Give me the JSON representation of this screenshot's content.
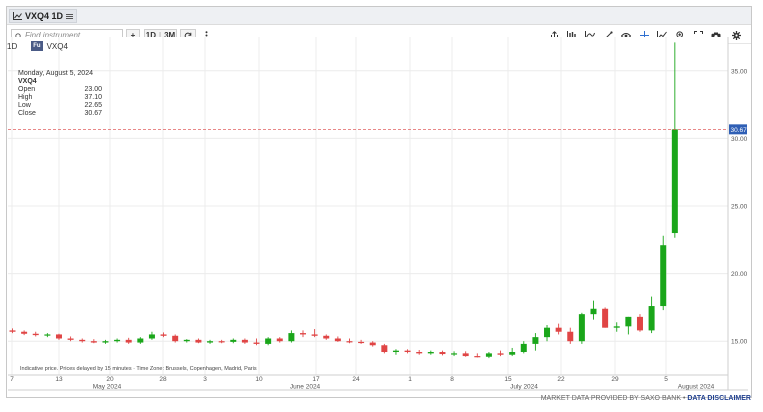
{
  "header": {
    "tab_label": "VXQ4 1D"
  },
  "toolbar": {
    "search_placeholder": "Find instrument",
    "add_label": "+",
    "interval_label": "1D",
    "range_label": "3M"
  },
  "instrument": {
    "interval": "1D",
    "badge": "Fu",
    "symbol": "VXQ4"
  },
  "ohlc": {
    "date": "Monday, August 5, 2024",
    "symbol": "VXQ4",
    "open_label": "Open",
    "open": "23.00",
    "high_label": "High",
    "high": "37.10",
    "low_label": "Low",
    "low": "22.65",
    "close_label": "Close",
    "close": "30.67"
  },
  "note": "Indicative price. Prices delayed by 15 minutes · Time Zone: Brussels, Copenhagen, Madrid, Paris",
  "footer": {
    "provider": "MARKET DATA PROVIDED BY SAXO BANK • ",
    "disclaimer": "DATA DISCLAIMER"
  },
  "colors": {
    "up": "#1aa61a",
    "down": "#e04545",
    "last_price_line": "#e06060",
    "last_price_tag": "#2f5fb5"
  },
  "chart_data": {
    "type": "candlestick",
    "y_ticks": [
      "15.00",
      "20.00",
      "25.00",
      "30.00",
      "35.00"
    ],
    "ylim": [
      12.5,
      37.5
    ],
    "last_price": "30.67",
    "x_day_ticks": [
      "7",
      "13",
      "20",
      "28",
      "3",
      "10",
      "17",
      "24",
      "1",
      "8",
      "15",
      "22",
      "29",
      "5"
    ],
    "x_month_labels": [
      "May 2024",
      "June 2024",
      "July 2024",
      "August 2024"
    ],
    "candles": [
      [
        15.8,
        15.95,
        15.6,
        15.7
      ],
      [
        15.7,
        15.8,
        15.45,
        15.55
      ],
      [
        15.55,
        15.7,
        15.35,
        15.45
      ],
      [
        15.45,
        15.6,
        15.3,
        15.5
      ],
      [
        15.5,
        15.55,
        15.1,
        15.2
      ],
      [
        15.2,
        15.35,
        15.0,
        15.1
      ],
      [
        15.1,
        15.2,
        14.9,
        15.0
      ],
      [
        15.0,
        15.15,
        14.85,
        14.9
      ],
      [
        14.9,
        15.1,
        14.8,
        15.0
      ],
      [
        15.0,
        15.2,
        14.9,
        15.1
      ],
      [
        15.1,
        15.25,
        14.8,
        14.9
      ],
      [
        14.9,
        15.3,
        14.8,
        15.2
      ],
      [
        15.2,
        15.7,
        15.1,
        15.5
      ],
      [
        15.5,
        15.65,
        15.3,
        15.4
      ],
      [
        15.4,
        15.5,
        14.9,
        15.0
      ],
      [
        15.0,
        15.15,
        14.9,
        15.1
      ],
      [
        15.1,
        15.2,
        14.85,
        14.9
      ],
      [
        14.9,
        15.1,
        14.8,
        15.0
      ],
      [
        15.0,
        15.1,
        14.85,
        14.95
      ],
      [
        14.95,
        15.2,
        14.85,
        15.1
      ],
      [
        15.1,
        15.2,
        14.8,
        14.9
      ],
      [
        14.9,
        15.2,
        14.7,
        14.8
      ],
      [
        14.8,
        15.3,
        14.7,
        15.2
      ],
      [
        15.2,
        15.3,
        14.9,
        15.0
      ],
      [
        15.0,
        15.8,
        14.9,
        15.6
      ],
      [
        15.6,
        15.8,
        15.3,
        15.5
      ],
      [
        15.5,
        15.9,
        15.3,
        15.4
      ],
      [
        15.4,
        15.5,
        15.1,
        15.2
      ],
      [
        15.2,
        15.35,
        14.95,
        15.0
      ],
      [
        15.0,
        15.2,
        14.85,
        14.95
      ],
      [
        14.95,
        15.1,
        14.8,
        14.9
      ],
      [
        14.9,
        15.0,
        14.6,
        14.7
      ],
      [
        14.7,
        14.8,
        14.1,
        14.2
      ],
      [
        14.2,
        14.4,
        14.0,
        14.3
      ],
      [
        14.3,
        14.4,
        14.1,
        14.2
      ],
      [
        14.2,
        14.35,
        14.0,
        14.1
      ],
      [
        14.1,
        14.3,
        14.0,
        14.2
      ],
      [
        14.2,
        14.3,
        13.95,
        14.05
      ],
      [
        14.05,
        14.25,
        13.9,
        14.1
      ],
      [
        14.1,
        14.25,
        13.85,
        13.9
      ],
      [
        13.9,
        14.1,
        13.8,
        13.85
      ],
      [
        13.85,
        14.2,
        13.75,
        14.1
      ],
      [
        14.1,
        14.3,
        13.9,
        14.0
      ],
      [
        14.0,
        14.5,
        13.9,
        14.2
      ],
      [
        14.2,
        15.0,
        14.1,
        14.8
      ],
      [
        14.8,
        15.6,
        14.3,
        15.3
      ],
      [
        15.3,
        16.2,
        15.0,
        16.0
      ],
      [
        16.0,
        16.3,
        15.5,
        15.7
      ],
      [
        15.7,
        16.0,
        14.8,
        15.0
      ],
      [
        15.0,
        17.1,
        14.8,
        17.0
      ],
      [
        17.0,
        18.0,
        16.6,
        17.4
      ],
      [
        17.4,
        17.5,
        16.0,
        16.0
      ],
      [
        16.0,
        16.4,
        15.7,
        16.1
      ],
      [
        16.1,
        16.8,
        15.5,
        16.8
      ],
      [
        16.8,
        17.0,
        15.7,
        15.8
      ],
      [
        15.8,
        18.3,
        15.6,
        17.6
      ],
      [
        17.6,
        22.8,
        17.3,
        22.1
      ],
      [
        23.0,
        37.1,
        22.65,
        30.67
      ]
    ]
  }
}
